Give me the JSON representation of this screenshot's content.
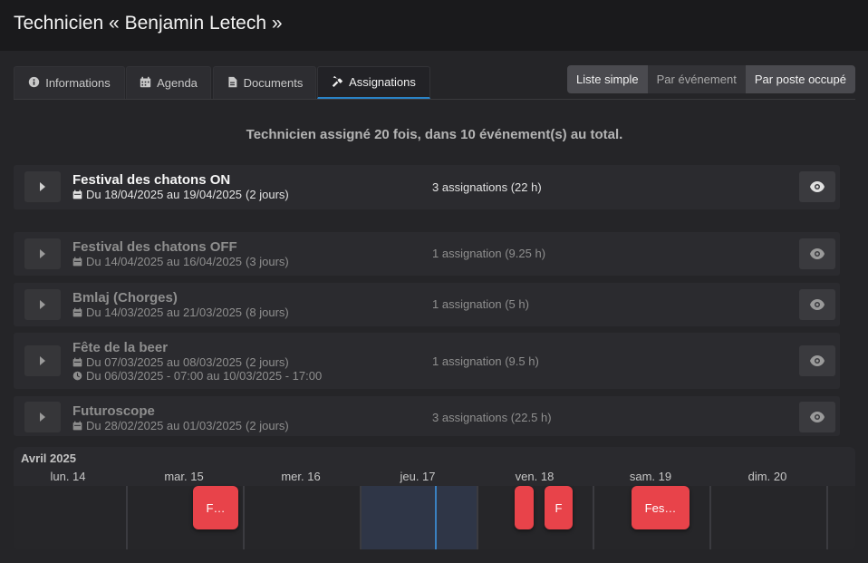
{
  "page": {
    "title": "Technicien « Benjamin Letech »"
  },
  "tabs": [
    {
      "label": "Informations",
      "icon": "info-circle-icon"
    },
    {
      "label": "Agenda",
      "icon": "calendar-icon"
    },
    {
      "label": "Documents",
      "icon": "file-icon"
    },
    {
      "label": "Assignations",
      "icon": "tools-icon",
      "active": true
    }
  ],
  "view_switcher": [
    {
      "label": "Liste simple",
      "active": true
    },
    {
      "label": "Par événement",
      "active": false
    },
    {
      "label": "Par poste occupé",
      "active": true
    }
  ],
  "summary": "Technicien assigné 20 fois, dans 10 événement(s) au total.",
  "events": [
    {
      "title": "Festival des chatons ON",
      "dates": "Du 18/04/2025 au 19/04/2025",
      "duration": "(2 jours)",
      "count": "3 assignations (22 h)"
    },
    {
      "title": "Festival des chatons OFF",
      "dates": "Du 14/04/2025 au 16/04/2025",
      "duration": "(3 jours)",
      "count": "1 assignation (9.25 h)"
    },
    {
      "title": "Bmlaj (Chorges)",
      "dates": "Du 14/03/2025 au 21/03/2025",
      "duration": "(8 jours)",
      "count": "1 assignation (5 h)"
    },
    {
      "title": "Fête de la beer",
      "dates": "Du 07/03/2025 au 08/03/2025",
      "duration": "(2 jours)",
      "hours": "Du 06/03/2025 - 07:00 au 10/03/2025 - 17:00",
      "count": "1 assignation (9.5 h)"
    },
    {
      "title": "Futuroscope",
      "dates": "Du 28/02/2025 au 01/03/2025",
      "duration": "(2 jours)",
      "count": "3 assignations (22.5 h)"
    }
  ],
  "timeline": {
    "month": "Avril 2025",
    "days": [
      "lun. 14",
      "mar. 15",
      "mer. 16",
      "jeu. 17",
      "ven. 18",
      "sam. 19",
      "dim. 20"
    ],
    "items": [
      {
        "label": "F…"
      },
      {
        "label": ""
      },
      {
        "label": "F"
      },
      {
        "label": "Fes…"
      }
    ],
    "colors": {
      "item": "#e8434a",
      "today": "#2f3647",
      "now_line": "#3a80c0"
    }
  }
}
